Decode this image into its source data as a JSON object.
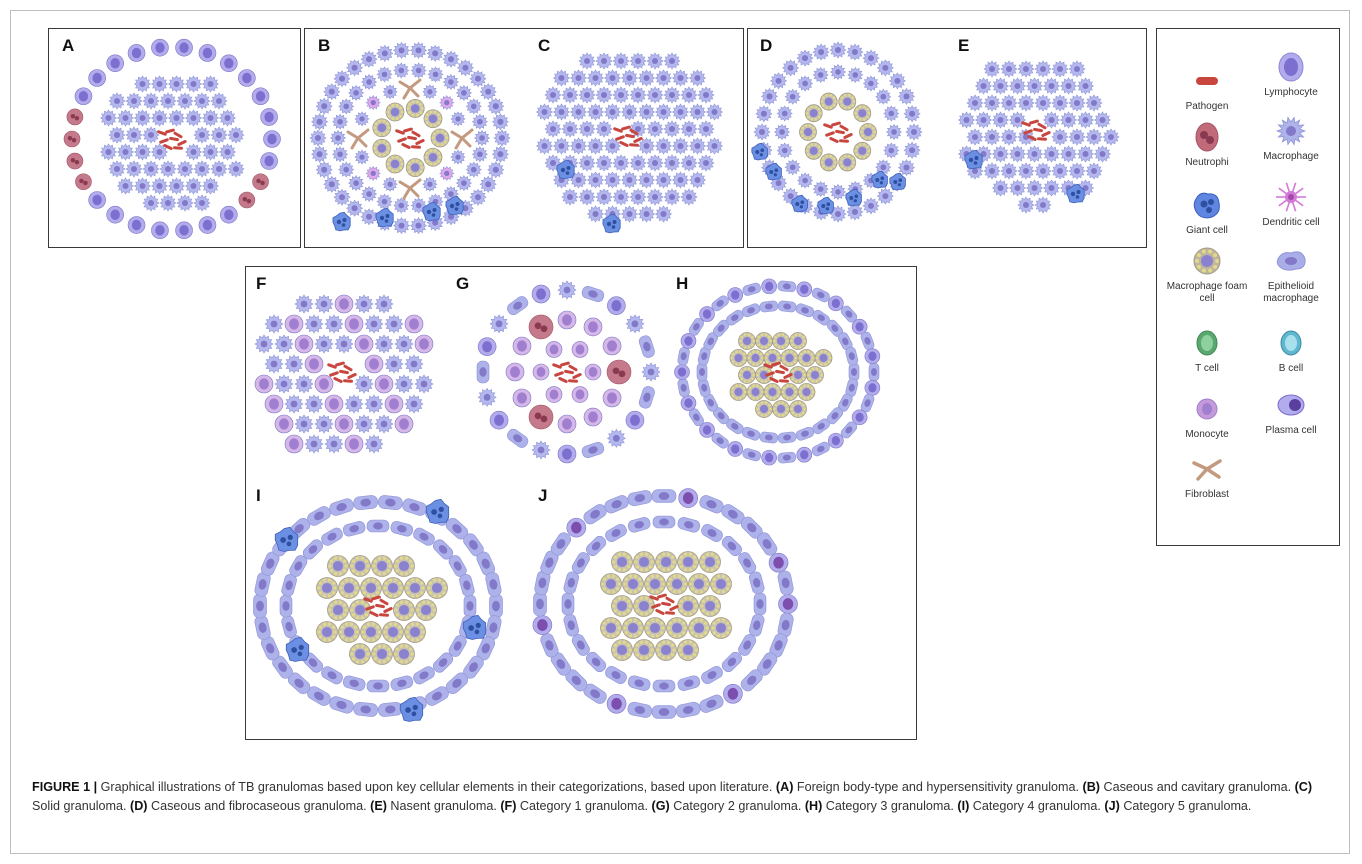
{
  "panels": [
    {
      "id": "A",
      "letter": "A"
    },
    {
      "id": "B",
      "letter": "B"
    },
    {
      "id": "C",
      "letter": "C"
    },
    {
      "id": "D",
      "letter": "D"
    },
    {
      "id": "E",
      "letter": "E"
    },
    {
      "id": "F",
      "letter": "F"
    },
    {
      "id": "G",
      "letter": "G"
    },
    {
      "id": "H",
      "letter": "H"
    },
    {
      "id": "I",
      "letter": "I"
    },
    {
      "id": "J",
      "letter": "J"
    }
  ],
  "legend": {
    "items": [
      {
        "label": "Pathogen",
        "icon": "pathogen-icon",
        "color": "#c9463f"
      },
      {
        "label": "Lymphocyte",
        "icon": "lymphocyte-icon",
        "color": "#8e86d8"
      },
      {
        "label": "Neutrophi",
        "icon": "neutrophil-icon",
        "color": "#c06a7a"
      },
      {
        "label": "Macrophage",
        "icon": "macrophage-icon",
        "color": "#aeb4ea"
      },
      {
        "label": "Giant cell",
        "icon": "giant-cell-icon",
        "color": "#5f86e0"
      },
      {
        "label": "Dendritic cell",
        "icon": "dendritic-cell-icon",
        "color": "#d27ad8"
      },
      {
        "label": "Macrophage foam cell",
        "icon": "foam-cell-icon",
        "color": "#bdb5a0"
      },
      {
        "label": "Epithelioid macrophage",
        "icon": "epithelioid-macrophage-icon",
        "color": "#a9aee8"
      },
      {
        "label": "T cell",
        "icon": "t-cell-icon",
        "color": "#5aa870"
      },
      {
        "label": "B cell",
        "icon": "b-cell-icon",
        "color": "#5fb8d0"
      },
      {
        "label": "Monocyte",
        "icon": "monocyte-icon",
        "color": "#c49ad8"
      },
      {
        "label": "Plasma cell",
        "icon": "plasma-cell-icon",
        "color": "#7a6ad0"
      },
      {
        "label": "Fibroblast",
        "icon": "fibroblast-icon",
        "color": "#c39a80"
      }
    ]
  },
  "caption": {
    "figure_label": "FIGURE 1 |",
    "lead": " Graphical illustrations of TB granulomas based upon key cellular elements in their categorizations, based upon literature. ",
    "parts": [
      {
        "tag": "(A)",
        "text": " Foreign body-type and hypersensitivity granuloma. "
      },
      {
        "tag": "(B)",
        "text": " Caseous and cavitary granuloma. "
      },
      {
        "tag": "(C)",
        "text": " Solid granuloma. "
      },
      {
        "tag": "(D)",
        "text": " Caseous and fibrocaseous granuloma. "
      },
      {
        "tag": "(E)",
        "text": " Nasent granuloma. "
      },
      {
        "tag": "(F)",
        "text": " Category 1 granuloma. "
      },
      {
        "tag": "(G)",
        "text": " Category 2 granuloma. "
      },
      {
        "tag": "(H)",
        "text": " Category 3 granuloma. "
      },
      {
        "tag": "(I)",
        "text": " Category 4 granuloma. "
      },
      {
        "tag": "(J)",
        "text": " Category 5 granuloma."
      }
    ]
  }
}
